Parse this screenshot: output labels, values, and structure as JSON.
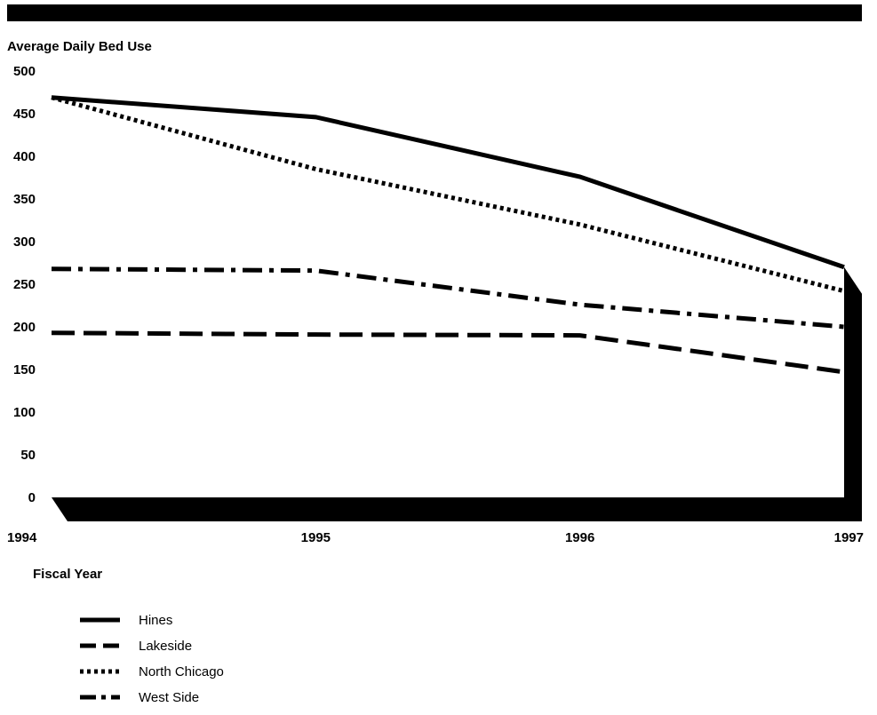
{
  "chart_data": {
    "type": "line",
    "title": "",
    "ylabel": "Average Daily Bed Use",
    "xlabel": "Fiscal Year",
    "x": [
      "1994",
      "1995",
      "1996",
      "1997"
    ],
    "ylim": [
      0,
      500
    ],
    "yticks": [
      "0",
      "50",
      "100",
      "150",
      "200",
      "250",
      "300",
      "350",
      "400",
      "450",
      "500"
    ],
    "grid": false,
    "legend_placement": "bottom-left",
    "series": [
      {
        "name": "Hines",
        "style": "solid",
        "values": [
          469,
          446,
          376,
          270
        ]
      },
      {
        "name": "Lakeside",
        "style": "dashed",
        "values": [
          193,
          191,
          190,
          147
        ]
      },
      {
        "name": "North Chicago",
        "style": "dotted",
        "values": [
          469,
          385,
          320,
          242
        ]
      },
      {
        "name": "West Side",
        "style": "dash-dot",
        "values": [
          268,
          266,
          226,
          200
        ]
      }
    ],
    "colors": {
      "line": "#000000",
      "frame": "#000000"
    }
  }
}
